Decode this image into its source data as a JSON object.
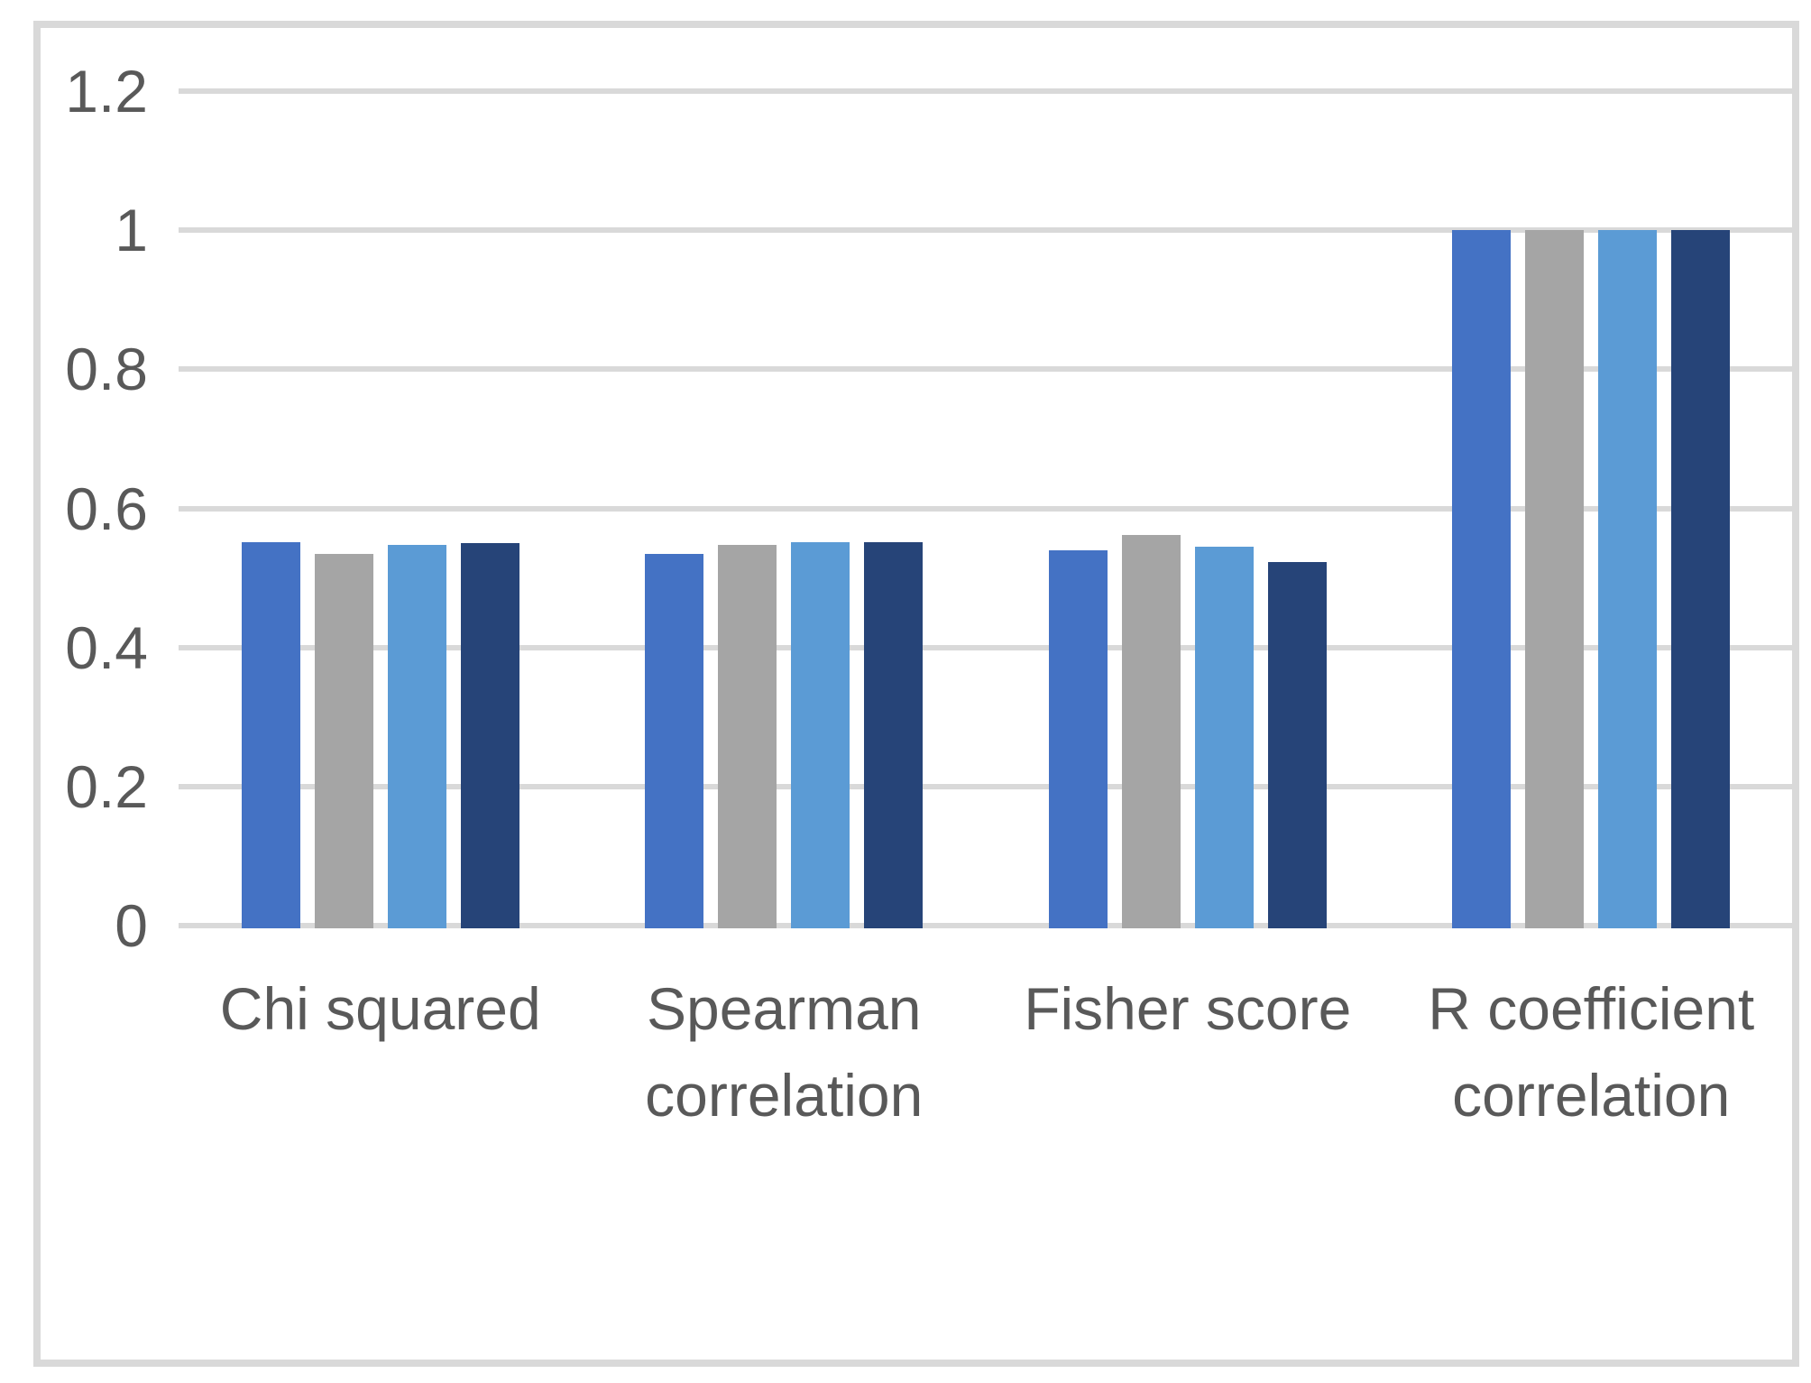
{
  "chart_data": {
    "type": "bar",
    "title": "",
    "xlabel": "",
    "ylabel": "",
    "categories": [
      "Chi squared",
      "Spearman correlation",
      "Fisher score",
      "R coefficient correlation"
    ],
    "series": [
      {
        "name": "blue",
        "color": "#4472C4",
        "values": [
          0.552,
          0.535,
          0.54,
          1.0
        ]
      },
      {
        "name": "gray",
        "color": "#A5A5A5",
        "values": [
          0.535,
          0.547,
          0.562,
          1.0
        ]
      },
      {
        "name": "light-blue",
        "color": "#5B9BD5",
        "values": [
          0.547,
          0.552,
          0.545,
          1.0
        ]
      },
      {
        "name": "dark-navy",
        "color": "#264478",
        "values": [
          0.55,
          0.552,
          0.523,
          1.0
        ]
      }
    ],
    "y_ticks": [
      "1.2",
      "1",
      "0.8",
      "0.6",
      "0.4",
      "0.2",
      "0"
    ],
    "ylim": [
      0,
      1.2
    ],
    "grid": true,
    "legend": "none"
  },
  "styles": {
    "background": "#FFFFFF",
    "border_color": "#D9D9D9",
    "grid_color": "#D9D9D9",
    "axis_text_color": "#595959"
  }
}
